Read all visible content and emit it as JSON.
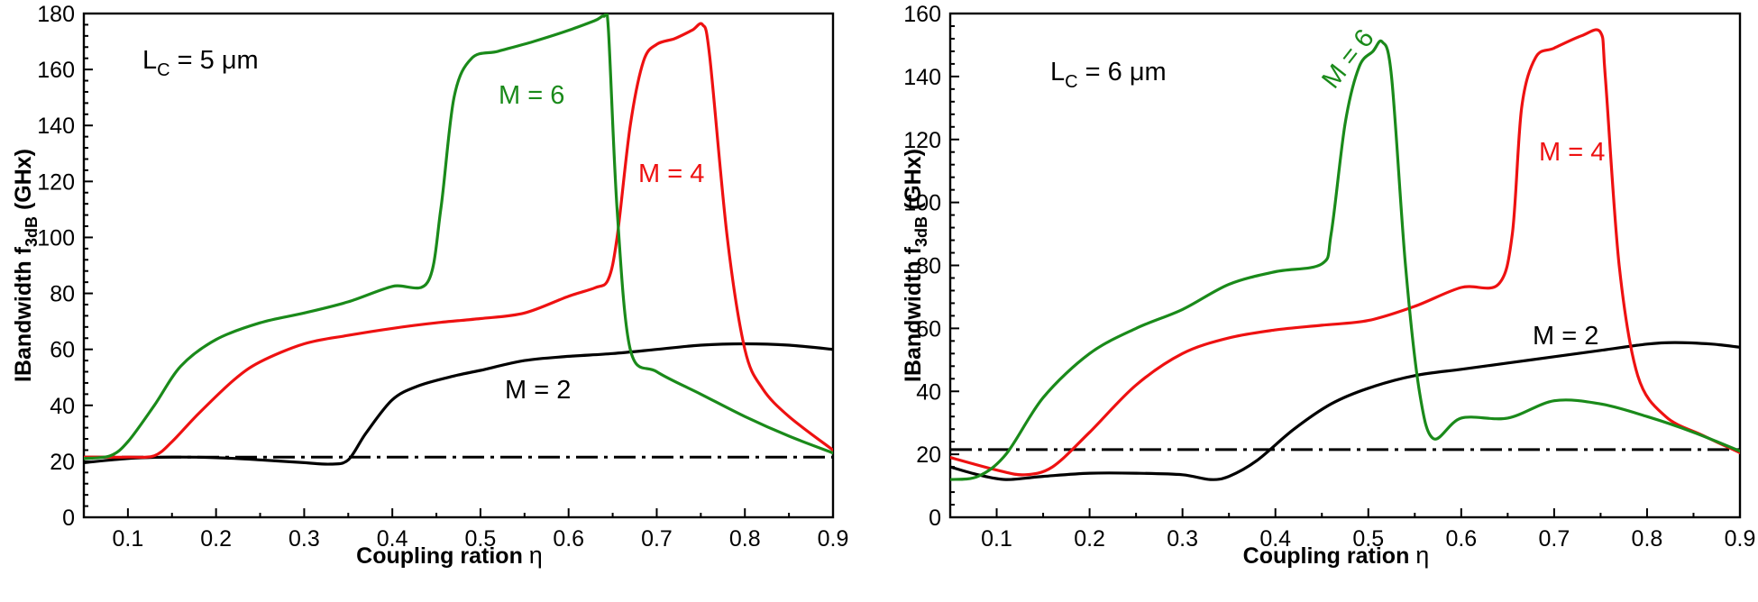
{
  "chart_data": [
    {
      "type": "line",
      "title": "",
      "annotation": {
        "main": "L",
        "sub": "C",
        "rest": " = 5 μm"
      },
      "xlabel": "Coupling ration",
      "xlabel_symbol": "η",
      "ylabel": "IBandwidth f",
      "ylabel_sub": "3dB",
      "ylabel_unit": " (GHx)",
      "xlim": [
        0.05,
        0.9
      ],
      "ylim": [
        0,
        180
      ],
      "xticks": [
        0.1,
        0.2,
        0.3,
        0.4,
        0.5,
        0.6,
        0.7,
        0.8,
        0.9
      ],
      "xtick_labels": [
        "0.1",
        "0.2",
        "0.3",
        "0.4",
        "0.5",
        "0.6",
        "0.7",
        "0.8",
        "0.9"
      ],
      "yticks": [
        0,
        20,
        40,
        60,
        80,
        100,
        120,
        140,
        160,
        180
      ],
      "ytick_labels": [
        "0",
        "20",
        "40",
        "60",
        "80",
        "100",
        "120",
        "140",
        "160",
        "180"
      ],
      "reference_line": {
        "y": 21.5,
        "style": "dash-dot"
      },
      "series": [
        {
          "name": "M = 2",
          "label_text": "M = 2",
          "color": "#000000",
          "points": [
            [
              0.05,
              19.5
            ],
            [
              0.1,
              21
            ],
            [
              0.15,
              21.5
            ],
            [
              0.2,
              21.3
            ],
            [
              0.25,
              20.5
            ],
            [
              0.3,
              19.5
            ],
            [
              0.33,
              19
            ],
            [
              0.35,
              20.5
            ],
            [
              0.37,
              30
            ],
            [
              0.4,
              42
            ],
            [
              0.43,
              47
            ],
            [
              0.47,
              50.5
            ],
            [
              0.5,
              52.5
            ],
            [
              0.55,
              56
            ],
            [
              0.6,
              57.5
            ],
            [
              0.65,
              58.5
            ],
            [
              0.7,
              60
            ],
            [
              0.75,
              61.5
            ],
            [
              0.8,
              62
            ],
            [
              0.85,
              61.5
            ],
            [
              0.9,
              60
            ]
          ]
        },
        {
          "name": "M = 4",
          "label_text": "M = 4",
          "color": "#ee1111",
          "points": [
            [
              0.05,
              21.5
            ],
            [
              0.1,
              21.5
            ],
            [
              0.13,
              22
            ],
            [
              0.15,
              27
            ],
            [
              0.18,
              37
            ],
            [
              0.22,
              49
            ],
            [
              0.25,
              55.5
            ],
            [
              0.3,
              62
            ],
            [
              0.35,
              65
            ],
            [
              0.4,
              67.5
            ],
            [
              0.45,
              69.5
            ],
            [
              0.5,
              71
            ],
            [
              0.55,
              73
            ],
            [
              0.6,
              79
            ],
            [
              0.63,
              82
            ],
            [
              0.645,
              85
            ],
            [
              0.655,
              100
            ],
            [
              0.67,
              140
            ],
            [
              0.685,
              163
            ],
            [
              0.7,
              169
            ],
            [
              0.72,
              171
            ],
            [
              0.74,
              174
            ],
            [
              0.752,
              176
            ],
            [
              0.76,
              165
            ],
            [
              0.78,
              100
            ],
            [
              0.8,
              60
            ],
            [
              0.82,
              46
            ],
            [
              0.85,
              36
            ],
            [
              0.9,
              24
            ]
          ]
        },
        {
          "name": "M = 6",
          "label_text": "M = 6",
          "color": "#1a8a1a",
          "points": [
            [
              0.05,
              21
            ],
            [
              0.08,
              22
            ],
            [
              0.1,
              27
            ],
            [
              0.13,
              40
            ],
            [
              0.16,
              54
            ],
            [
              0.2,
              63.5
            ],
            [
              0.25,
              69.5
            ],
            [
              0.3,
              73
            ],
            [
              0.35,
              77
            ],
            [
              0.4,
              82.5
            ],
            [
              0.44,
              84
            ],
            [
              0.455,
              110
            ],
            [
              0.47,
              150
            ],
            [
              0.49,
              164
            ],
            [
              0.52,
              166.5
            ],
            [
              0.56,
              170
            ],
            [
              0.6,
              174
            ],
            [
              0.63,
              177.5
            ],
            [
              0.64,
              179
            ],
            [
              0.645,
              175
            ],
            [
              0.655,
              110
            ],
            [
              0.67,
              60
            ],
            [
              0.7,
              52
            ],
            [
              0.75,
              44
            ],
            [
              0.8,
              36
            ],
            [
              0.85,
              29
            ],
            [
              0.9,
              23
            ]
          ]
        }
      ]
    },
    {
      "type": "line",
      "title": "",
      "annotation": {
        "main": "L",
        "sub": "C",
        "rest": " = 6 μm"
      },
      "xlabel": "Coupling ration",
      "xlabel_symbol": "η",
      "ylabel": "IBandwidth f",
      "ylabel_sub": "3dB",
      "ylabel_unit": " (GHx)",
      "xlim": [
        0.05,
        0.9
      ],
      "ylim": [
        0,
        160
      ],
      "xticks": [
        0.1,
        0.2,
        0.3,
        0.4,
        0.5,
        0.6,
        0.7,
        0.8,
        0.9
      ],
      "xtick_labels": [
        "0.1",
        "0.2",
        "0.3",
        "0.4",
        "0.5",
        "0.6",
        "0.7",
        "0.8",
        "0.9"
      ],
      "yticks": [
        0,
        20,
        40,
        60,
        80,
        100,
        120,
        140,
        160
      ],
      "ytick_labels": [
        "0",
        "20",
        "40",
        "60",
        "80",
        "100",
        "120",
        "140",
        "160"
      ],
      "reference_line": {
        "y": 21.5,
        "style": "dash-dot"
      },
      "series": [
        {
          "name": "M = 2",
          "label_text": "M = 2",
          "color": "#000000",
          "points": [
            [
              0.05,
              16
            ],
            [
              0.08,
              13.5
            ],
            [
              0.11,
              12
            ],
            [
              0.15,
              13
            ],
            [
              0.2,
              14
            ],
            [
              0.25,
              14
            ],
            [
              0.3,
              13.5
            ],
            [
              0.33,
              12
            ],
            [
              0.35,
              13
            ],
            [
              0.38,
              18
            ],
            [
              0.42,
              28
            ],
            [
              0.46,
              36
            ],
            [
              0.5,
              41
            ],
            [
              0.55,
              45
            ],
            [
              0.6,
              47
            ],
            [
              0.65,
              49
            ],
            [
              0.7,
              51
            ],
            [
              0.75,
              53
            ],
            [
              0.8,
              55
            ],
            [
              0.83,
              55.5
            ],
            [
              0.87,
              55
            ],
            [
              0.9,
              54
            ]
          ]
        },
        {
          "name": "M = 4",
          "label_text": "M = 4",
          "color": "#ee1111",
          "points": [
            [
              0.05,
              19
            ],
            [
              0.1,
              15
            ],
            [
              0.13,
              13.5
            ],
            [
              0.16,
              16
            ],
            [
              0.2,
              27
            ],
            [
              0.25,
              42
            ],
            [
              0.3,
              52
            ],
            [
              0.35,
              57
            ],
            [
              0.4,
              59.5
            ],
            [
              0.45,
              61
            ],
            [
              0.5,
              62.5
            ],
            [
              0.55,
              67
            ],
            [
              0.6,
              73
            ],
            [
              0.64,
              74
            ],
            [
              0.655,
              90
            ],
            [
              0.665,
              130
            ],
            [
              0.68,
              146
            ],
            [
              0.7,
              149
            ],
            [
              0.73,
              153
            ],
            [
              0.75,
              154
            ],
            [
              0.755,
              140
            ],
            [
              0.77,
              80
            ],
            [
              0.79,
              45
            ],
            [
              0.82,
              32
            ],
            [
              0.86,
              26
            ],
            [
              0.9,
              20.5
            ]
          ]
        },
        {
          "name": "M = 6",
          "label_text": "M = 6",
          "color": "#1a8a1a",
          "points": [
            [
              0.05,
              12
            ],
            [
              0.08,
              13
            ],
            [
              0.11,
              20
            ],
            [
              0.15,
              38
            ],
            [
              0.2,
              52
            ],
            [
              0.25,
              60
            ],
            [
              0.3,
              66
            ],
            [
              0.35,
              74
            ],
            [
              0.4,
              78
            ],
            [
              0.45,
              80.5
            ],
            [
              0.46,
              90
            ],
            [
              0.475,
              125
            ],
            [
              0.49,
              143
            ],
            [
              0.505,
              148
            ],
            [
              0.515,
              151
            ],
            [
              0.525,
              140
            ],
            [
              0.54,
              80
            ],
            [
              0.555,
              40
            ],
            [
              0.57,
              25
            ],
            [
              0.6,
              31.5
            ],
            [
              0.65,
              31.5
            ],
            [
              0.7,
              37
            ],
            [
              0.75,
              36
            ],
            [
              0.8,
              32
            ],
            [
              0.85,
              27
            ],
            [
              0.9,
              21
            ]
          ]
        }
      ]
    }
  ]
}
